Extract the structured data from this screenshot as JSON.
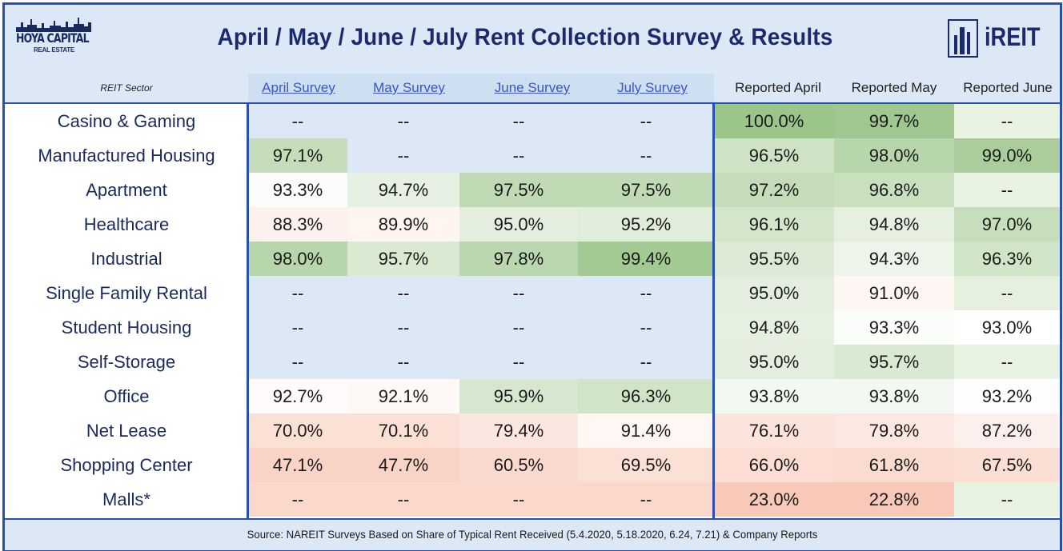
{
  "header": {
    "logo_name": "HOYA CAPITAL",
    "logo_sub": "REAL ESTATE",
    "title": "April / May / June / July Rent Collection Survey & Results",
    "brand": "iREIT"
  },
  "columns": {
    "sector": "REIT Sector",
    "april_survey": "April Survey",
    "may_survey": "May Survey",
    "june_survey": "June Survey",
    "july_survey": "July Survey",
    "reported_april": "Reported April",
    "reported_may": "Reported May",
    "reported_june": "Reported June"
  },
  "chart_data": {
    "type": "table",
    "title": "April / May / June / July Rent Collection Survey & Results",
    "columns": [
      "REIT Sector",
      "April Survey",
      "May Survey",
      "June Survey",
      "July Survey",
      "Reported April",
      "Reported May",
      "Reported June"
    ],
    "rows": [
      {
        "sector": "Casino & Gaming",
        "values": [
          "--",
          "--",
          "--",
          "--",
          "100.0%",
          "99.7%",
          "--"
        ]
      },
      {
        "sector": "Manufactured Housing",
        "values": [
          "97.1%",
          "--",
          "--",
          "--",
          "96.5%",
          "98.0%",
          "99.0%"
        ]
      },
      {
        "sector": "Apartment",
        "values": [
          "93.3%",
          "94.7%",
          "97.5%",
          "97.5%",
          "97.2%",
          "96.8%",
          "--"
        ]
      },
      {
        "sector": "Healthcare",
        "values": [
          "88.3%",
          "89.9%",
          "95.0%",
          "95.2%",
          "96.1%",
          "94.8%",
          "97.0%"
        ]
      },
      {
        "sector": "Industrial",
        "values": [
          "98.0%",
          "95.7%",
          "97.8%",
          "99.4%",
          "95.5%",
          "94.3%",
          "96.3%"
        ]
      },
      {
        "sector": "Single Family Rental",
        "values": [
          "--",
          "--",
          "--",
          "--",
          "95.0%",
          "91.0%",
          "--"
        ]
      },
      {
        "sector": "Student Housing",
        "values": [
          "--",
          "--",
          "--",
          "--",
          "94.8%",
          "93.3%",
          "93.0%"
        ]
      },
      {
        "sector": "Self-Storage",
        "values": [
          "--",
          "--",
          "--",
          "--",
          "95.0%",
          "95.7%",
          "--"
        ]
      },
      {
        "sector": "Office",
        "values": [
          "92.7%",
          "92.1%",
          "95.9%",
          "96.3%",
          "93.8%",
          "93.8%",
          "93.2%"
        ]
      },
      {
        "sector": "Net Lease",
        "values": [
          "70.0%",
          "70.1%",
          "79.4%",
          "91.4%",
          "76.1%",
          "79.8%",
          "87.2%"
        ]
      },
      {
        "sector": "Shopping Center",
        "values": [
          "47.1%",
          "47.7%",
          "60.5%",
          "69.5%",
          "66.0%",
          "61.8%",
          "67.5%"
        ]
      },
      {
        "sector": "Malls*",
        "values": [
          "--",
          "--",
          "--",
          "--",
          "23.0%",
          "22.8%",
          "--"
        ]
      }
    ],
    "row_dash_fill": {
      "Casino & Gaming": [
        "#dde8f6",
        "#e9f3e2"
      ],
      "Manufactured Housing": [
        "#dde8f6",
        "#e9f3e2"
      ],
      "Apartment": [
        "#dde8f6",
        "#e9f3e2"
      ],
      "Single Family Rental": [
        "#dde8f6",
        "#e6f0df"
      ],
      "Student Housing": [
        "#dde8f6",
        "#e9f3e2"
      ],
      "Self-Storage": [
        "#dde8f6",
        "#e9f3e2"
      ],
      "Malls*": [
        "#fbd8cb",
        "#e9f3e2"
      ]
    },
    "color_scale": {
      "low": "#f8c9b8",
      "mid": "#ffffff",
      "high": "#9cc58a"
    }
  },
  "footer": {
    "source": "Source: NAREIT Surveys Based on Share of Typical Rent Received (5.4.2020, 5.18.2020, 6.24, 7.21) & Company Reports"
  }
}
